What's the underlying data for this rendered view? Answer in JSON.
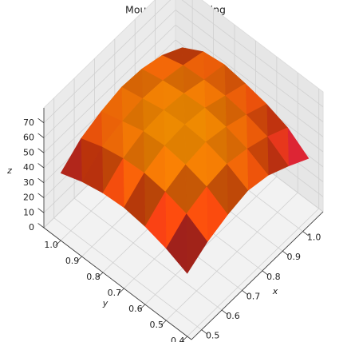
{
  "chart_data": {
    "type": "surface3d",
    "title": "Mountain Clustering",
    "xlabel": "x",
    "ylabel": "y",
    "zlabel": "z",
    "xlim": [
      0.45,
      1.1
    ],
    "ylim": [
      0.38,
      1.08
    ],
    "zlim": [
      0,
      80
    ],
    "xticks": [
      0.5,
      0.6,
      0.7,
      0.8,
      0.9,
      {
        "value": 1.0,
        "label": "1.0"
      }
    ],
    "yticks": [
      0.4,
      0.5,
      0.6,
      0.7,
      0.8,
      0.9,
      {
        "value": 1.0,
        "label": "1.0"
      }
    ],
    "zticks": [
      0,
      10,
      20,
      30,
      40,
      50,
      60,
      70
    ],
    "x": [
      0.45,
      0.55,
      0.65,
      0.75,
      0.85,
      0.95,
      1.05
    ],
    "y": [
      0.4,
      0.5,
      0.6,
      0.7,
      0.8,
      0.9,
      1.0
    ],
    "z": [
      [
        42,
        50,
        55,
        58,
        55,
        48,
        40
      ],
      [
        48,
        58,
        63,
        65,
        62,
        57,
        50
      ],
      [
        52,
        62,
        67,
        69,
        66,
        61,
        55
      ],
      [
        54,
        64,
        69,
        70,
        68,
        63,
        58
      ],
      [
        53,
        63,
        68,
        69,
        67,
        63,
        60
      ],
      [
        50,
        60,
        64,
        66,
        65,
        62,
        58
      ],
      [
        45,
        55,
        60,
        63,
        62,
        58,
        50
      ]
    ],
    "colormap": [
      "#c8104a",
      "#e8400e",
      "#ff9800"
    ],
    "grid": true
  }
}
